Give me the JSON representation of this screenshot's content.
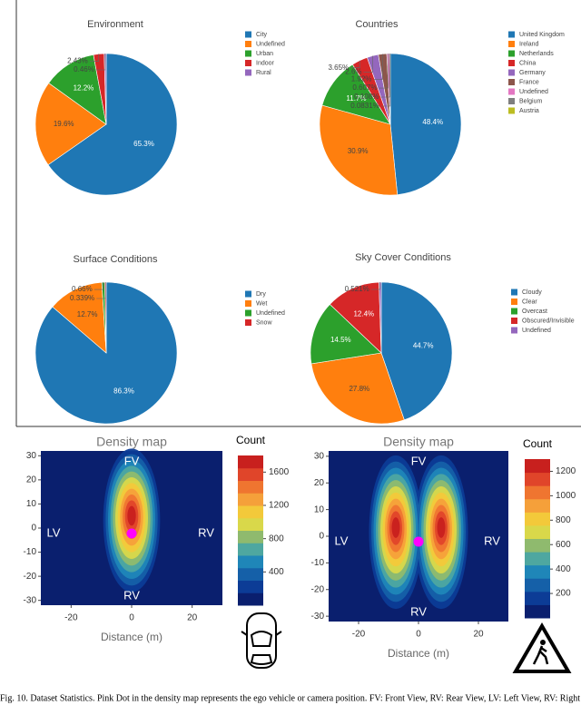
{
  "chart_data": [
    {
      "type": "pie",
      "title": "Environment",
      "labels": [
        "City",
        "Undefined",
        "Urban",
        "Indoor",
        "Rural"
      ],
      "values": [
        65.3,
        19.6,
        12.2,
        2.43,
        0.46
      ],
      "value_labels": [
        "65.3%",
        "19.6%",
        "12.2%",
        "2.43%",
        "0.46%"
      ],
      "colors": [
        "#1f77b4",
        "#ff7f0e",
        "#2ca02c",
        "#d62728",
        "#9467bd"
      ]
    },
    {
      "type": "pie",
      "title": "Countries",
      "labels": [
        "United Kingdom",
        "Ireland",
        "Netherlands",
        "China",
        "Germany",
        "France",
        "Undefined",
        "Belgium",
        "Austria"
      ],
      "values": [
        48.4,
        30.9,
        11.7,
        3.65,
        2.6,
        1.92,
        0.607,
        0.108,
        0.0831
      ],
      "value_labels": [
        "48.4%",
        "30.9%",
        "11.7%",
        "3.65%",
        "2.6%",
        "1.92%",
        "0.607%",
        "0.108%",
        "0.0831%"
      ],
      "colors": [
        "#1f77b4",
        "#ff7f0e",
        "#2ca02c",
        "#d62728",
        "#9467bd",
        "#8c564b",
        "#e377c2",
        "#7f7f7f",
        "#bcbd22"
      ]
    },
    {
      "type": "pie",
      "title": "Surface Conditions",
      "labels": [
        "Dry",
        "Wet",
        "Undefined",
        "Snow"
      ],
      "values": [
        86.3,
        12.7,
        0.66,
        0.339
      ],
      "value_labels": [
        "86.3%",
        "12.7%",
        "0.66%",
        "0.339%"
      ],
      "colors": [
        "#1f77b4",
        "#ff7f0e",
        "#2ca02c",
        "#d62728"
      ]
    },
    {
      "type": "pie",
      "title": "Sky Cover Conditions",
      "labels": [
        "Cloudy",
        "Clear",
        "Overcast",
        "Obscured/Invisible",
        "Undefined"
      ],
      "values": [
        44.7,
        27.8,
        14.5,
        12.4,
        0.521
      ],
      "value_labels": [
        "44.7%",
        "27.8%",
        "14.5%",
        "12.4%",
        "0.521%"
      ],
      "colors": [
        "#1f77b4",
        "#ff7f0e",
        "#2ca02c",
        "#d62728",
        "#9467bd"
      ]
    },
    {
      "type": "contour",
      "title": "Density map",
      "x_label": "Distance (m)",
      "xlim": [
        -30,
        30
      ],
      "ylim": [
        -32,
        32
      ],
      "xticks": [
        -20,
        0,
        20
      ],
      "yticks": [
        30,
        20,
        10,
        0,
        -10,
        -20,
        -30
      ],
      "annotations": [
        "FV",
        "RV",
        "LV",
        "RV"
      ],
      "colorbar_title": "Count",
      "colorbar_lim": [
        0,
        1800
      ],
      "colorbar_ticks": [
        400,
        800,
        1200,
        1600
      ],
      "colors": [
        "#0a1f6e",
        "#0c3c96",
        "#1560a8",
        "#1f86b8",
        "#4ea7a0",
        "#8fba6e",
        "#d9d84a",
        "#f3c93a",
        "#f5a03a",
        "#ef7530",
        "#e0452a",
        "#c8201e"
      ]
    },
    {
      "type": "contour",
      "title": "Density map",
      "x_label": "Distance (m)",
      "xlim": [
        -30,
        30
      ],
      "ylim": [
        -32,
        32
      ],
      "xticks": [
        -20,
        0,
        20
      ],
      "yticks": [
        30,
        20,
        10,
        0,
        -10,
        -20,
        -30
      ],
      "annotations": [
        "FV",
        "RV",
        "LV",
        "RV"
      ],
      "colorbar_title": "Count",
      "colorbar_lim": [
        0,
        1300
      ],
      "colorbar_ticks": [
        200,
        400,
        600,
        800,
        1000,
        1200
      ],
      "colors": [
        "#0a1f6e",
        "#0c3c96",
        "#1560a8",
        "#1f86b8",
        "#4ea7a0",
        "#8fba6e",
        "#d9d84a",
        "#f3c93a",
        "#f5a03a",
        "#ef7530",
        "#e0452a",
        "#c8201e"
      ]
    }
  ],
  "caption": "Fig. 10. Dataset Statistics. Pink Dot in the density map represents the ego vehicle or camera position. FV: Front View, RV: Rear View, LV: Left View, RV: Right View"
}
